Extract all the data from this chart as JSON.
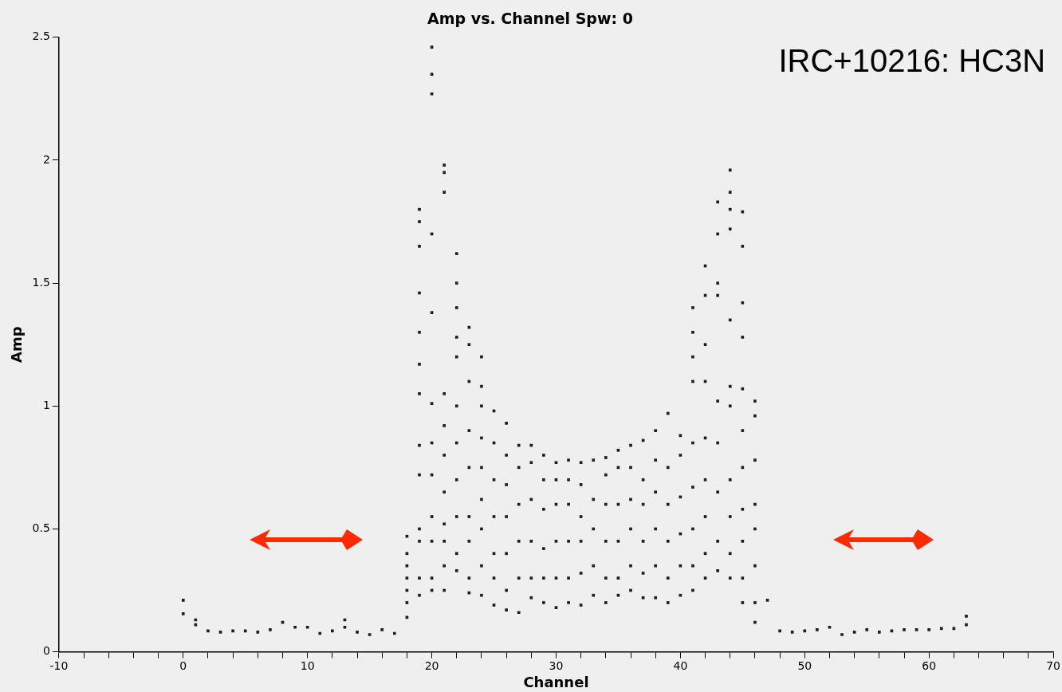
{
  "chart_data": {
    "type": "scatter",
    "title": "Amp vs. Channel Spw: 0",
    "xlabel": "Channel",
    "ylabel": "Amp",
    "annotations": [
      "IRC+10216: HC3N"
    ],
    "series": [
      {
        "color": "#1e1e1e",
        "x": [
          0,
          0,
          1,
          1,
          2,
          3,
          4,
          5,
          6,
          7,
          8,
          9,
          10,
          11,
          12,
          13,
          13,
          14,
          15,
          16,
          17,
          18,
          18,
          18,
          18,
          18,
          18,
          18,
          19,
          19,
          19,
          19,
          19,
          19,
          19,
          19,
          19,
          19,
          19,
          19,
          19,
          20,
          20,
          20,
          20,
          20,
          20,
          20,
          20,
          20,
          20,
          20,
          20,
          21,
          21,
          21,
          21,
          21,
          21,
          21,
          21,
          21,
          21,
          21,
          22,
          22,
          22,
          22,
          22,
          22,
          22,
          22,
          22,
          22,
          22,
          23,
          23,
          23,
          23,
          23,
          23,
          23,
          23,
          23,
          24,
          24,
          24,
          24,
          24,
          24,
          24,
          24,
          24,
          25,
          25,
          25,
          25,
          25,
          25,
          25,
          26,
          26,
          26,
          26,
          26,
          26,
          26,
          27,
          27,
          27,
          27,
          27,
          27,
          28,
          28,
          28,
          28,
          28,
          28,
          29,
          29,
          29,
          29,
          29,
          29,
          30,
          30,
          30,
          30,
          30,
          30,
          31,
          31,
          31,
          31,
          31,
          31,
          32,
          32,
          32,
          32,
          32,
          32,
          33,
          33,
          33,
          33,
          33,
          34,
          34,
          34,
          34,
          34,
          34,
          35,
          35,
          35,
          35,
          35,
          35,
          36,
          36,
          36,
          36,
          36,
          36,
          37,
          37,
          37,
          37,
          37,
          37,
          38,
          38,
          38,
          38,
          38,
          38,
          39,
          39,
          39,
          39,
          39,
          39,
          40,
          40,
          40,
          40,
          40,
          40,
          41,
          41,
          41,
          41,
          41,
          41,
          41,
          41,
          41,
          42,
          42,
          42,
          42,
          42,
          42,
          42,
          42,
          42,
          43,
          43,
          43,
          43,
          43,
          43,
          43,
          43,
          43,
          44,
          44,
          44,
          44,
          44,
          44,
          44,
          44,
          44,
          44,
          44,
          45,
          45,
          45,
          45,
          45,
          45,
          45,
          45,
          45,
          45,
          45,
          46,
          46,
          46,
          46,
          46,
          46,
          46,
          46,
          47,
          48,
          49,
          50,
          51,
          52,
          53,
          54,
          55,
          56,
          57,
          58,
          59,
          60,
          61,
          62,
          63,
          63
        ],
        "values": [
          0.155,
          0.21,
          0.11,
          0.13,
          0.085,
          0.08,
          0.085,
          0.085,
          0.08,
          0.09,
          0.12,
          0.1,
          0.1,
          0.075,
          0.085,
          0.1,
          0.13,
          0.08,
          0.07,
          0.09,
          0.075,
          0.14,
          0.2,
          0.25,
          0.3,
          0.35,
          0.4,
          0.47,
          0.23,
          0.3,
          0.45,
          0.5,
          0.72,
          0.84,
          1.05,
          1.17,
          1.3,
          1.46,
          1.65,
          1.75,
          1.8,
          0.25,
          0.3,
          0.45,
          0.55,
          0.72,
          0.85,
          1.01,
          1.38,
          1.7,
          2.27,
          2.35,
          2.46,
          0.25,
          0.35,
          0.45,
          0.52,
          0.65,
          0.8,
          0.92,
          1.05,
          1.87,
          1.95,
          1.98,
          0.33,
          0.4,
          0.55,
          0.7,
          0.85,
          1.0,
          1.2,
          1.28,
          1.4,
          1.5,
          1.62,
          0.24,
          0.3,
          0.45,
          0.55,
          0.75,
          0.9,
          1.1,
          1.25,
          1.32,
          0.23,
          0.35,
          0.5,
          0.62,
          0.75,
          0.87,
          1.0,
          1.08,
          1.2,
          0.19,
          0.3,
          0.4,
          0.55,
          0.7,
          0.85,
          0.98,
          0.17,
          0.25,
          0.4,
          0.55,
          0.68,
          0.8,
          0.93,
          0.16,
          0.3,
          0.45,
          0.6,
          0.75,
          0.84,
          0.22,
          0.3,
          0.45,
          0.62,
          0.77,
          0.84,
          0.2,
          0.3,
          0.42,
          0.58,
          0.7,
          0.8,
          0.18,
          0.3,
          0.45,
          0.6,
          0.7,
          0.77,
          0.2,
          0.3,
          0.45,
          0.6,
          0.7,
          0.78,
          0.19,
          0.32,
          0.45,
          0.55,
          0.68,
          0.77,
          0.23,
          0.35,
          0.5,
          0.62,
          0.78,
          0.2,
          0.3,
          0.45,
          0.6,
          0.72,
          0.79,
          0.23,
          0.3,
          0.45,
          0.6,
          0.75,
          0.82,
          0.25,
          0.35,
          0.5,
          0.62,
          0.75,
          0.84,
          0.22,
          0.32,
          0.45,
          0.6,
          0.7,
          0.86,
          0.22,
          0.35,
          0.5,
          0.65,
          0.78,
          0.9,
          0.2,
          0.3,
          0.45,
          0.6,
          0.75,
          0.97,
          0.23,
          0.35,
          0.48,
          0.63,
          0.8,
          0.88,
          0.25,
          0.35,
          0.5,
          0.67,
          0.85,
          1.1,
          1.2,
          1.3,
          1.4,
          0.3,
          0.4,
          0.55,
          0.7,
          0.87,
          1.1,
          1.25,
          1.45,
          1.57,
          0.33,
          0.45,
          0.65,
          0.85,
          1.02,
          1.45,
          1.5,
          1.7,
          1.83,
          0.3,
          0.4,
          0.55,
          0.7,
          1.0,
          1.08,
          1.35,
          1.72,
          1.8,
          1.87,
          1.96,
          0.2,
          0.3,
          0.45,
          0.58,
          0.75,
          0.9,
          1.07,
          1.28,
          1.42,
          1.65,
          1.79,
          0.12,
          0.2,
          0.35,
          0.5,
          0.6,
          0.78,
          0.96,
          1.02,
          0.21,
          0.085,
          0.08,
          0.085,
          0.09,
          0.1,
          0.07,
          0.08,
          0.09,
          0.08,
          0.085,
          0.09,
          0.09,
          0.09,
          0.095,
          0.095,
          0.11,
          0.145
        ]
      }
    ],
    "xlim": [
      -10,
      70
    ],
    "xticks": [
      -10,
      {
        "value": -8,
        "label": null
      },
      {
        "value": -6,
        "label": null
      },
      {
        "value": -4,
        "label": null
      },
      {
        "value": -2,
        "label": null
      },
      0,
      {
        "value": 2,
        "label": null
      },
      {
        "value": 4,
        "label": null
      },
      {
        "value": 6,
        "label": null
      },
      {
        "value": 8,
        "label": null
      },
      10,
      {
        "value": 12,
        "label": null
      },
      {
        "value": 14,
        "label": null
      },
      {
        "value": 16,
        "label": null
      },
      {
        "value": 18,
        "label": null
      },
      20,
      {
        "value": 22,
        "label": null
      },
      {
        "value": 24,
        "label": null
      },
      {
        "value": 26,
        "label": null
      },
      {
        "value": 28,
        "label": null
      },
      30,
      {
        "value": 32,
        "label": null
      },
      {
        "value": 34,
        "label": null
      },
      {
        "value": 36,
        "label": null
      },
      {
        "value": 38,
        "label": null
      },
      40,
      {
        "value": 42,
        "label": null
      },
      {
        "value": 44,
        "label": null
      },
      {
        "value": 46,
        "label": null
      },
      {
        "value": 48,
        "label": null
      },
      50,
      {
        "value": 52,
        "label": null
      },
      {
        "value": 54,
        "label": null
      },
      {
        "value": 56,
        "label": null
      },
      {
        "value": 58,
        "label": null
      },
      60,
      {
        "value": 62,
        "label": null
      },
      {
        "value": 64,
        "label": null
      },
      {
        "value": 66,
        "label": null
      },
      {
        "value": 68,
        "label": null
      },
      70
    ],
    "ylim": [
      0,
      2.5
    ],
    "yticks": [
      0,
      0.5,
      1,
      1.5,
      2,
      2.5
    ],
    "marker": "square",
    "grid": false,
    "legend": false
  }
}
